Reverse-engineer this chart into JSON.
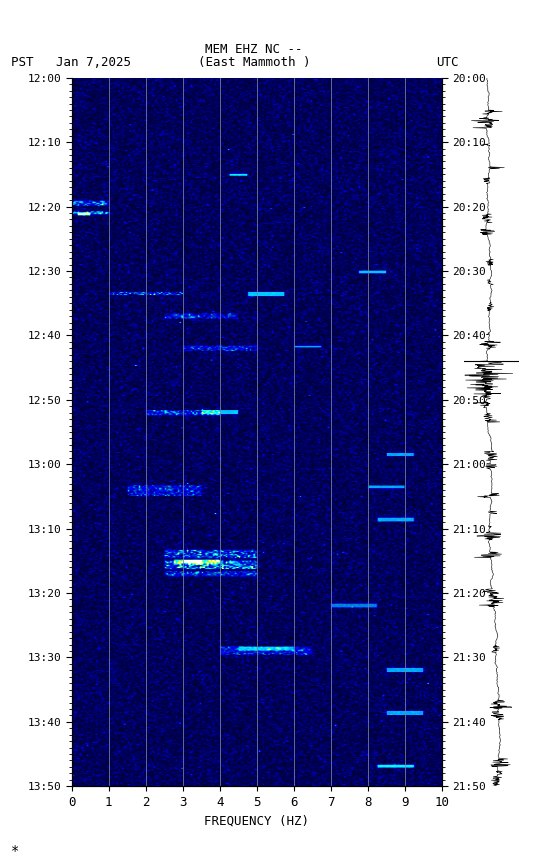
{
  "title_line1": "MEM EHZ NC --",
  "title_line2": "(East Mammoth )",
  "left_label": "PST   Jan 7,2025",
  "right_label": "UTC",
  "xlabel": "FREQUENCY (HZ)",
  "freq_min": 0,
  "freq_max": 10,
  "freq_ticks": [
    0,
    1,
    2,
    3,
    4,
    5,
    6,
    7,
    8,
    9,
    10
  ],
  "time_left_labels": [
    "12:00",
    "12:10",
    "12:20",
    "12:30",
    "12:40",
    "12:50",
    "13:00",
    "13:10",
    "13:20",
    "13:30",
    "13:40",
    "13:50"
  ],
  "time_right_labels": [
    "20:00",
    "20:10",
    "20:20",
    "20:30",
    "20:40",
    "20:50",
    "21:00",
    "21:10",
    "21:20",
    "21:30",
    "21:40",
    "21:50"
  ],
  "n_time_steps": 660,
  "n_freq_steps": 200,
  "background_color": "#ffffff",
  "spectrogram_base_color": [
    0,
    0,
    128
  ],
  "vertical_line_color": "#556677",
  "vertical_lines_freq": [
    1,
    2,
    3,
    4,
    5,
    6,
    7,
    8,
    9
  ],
  "seed": 42
}
